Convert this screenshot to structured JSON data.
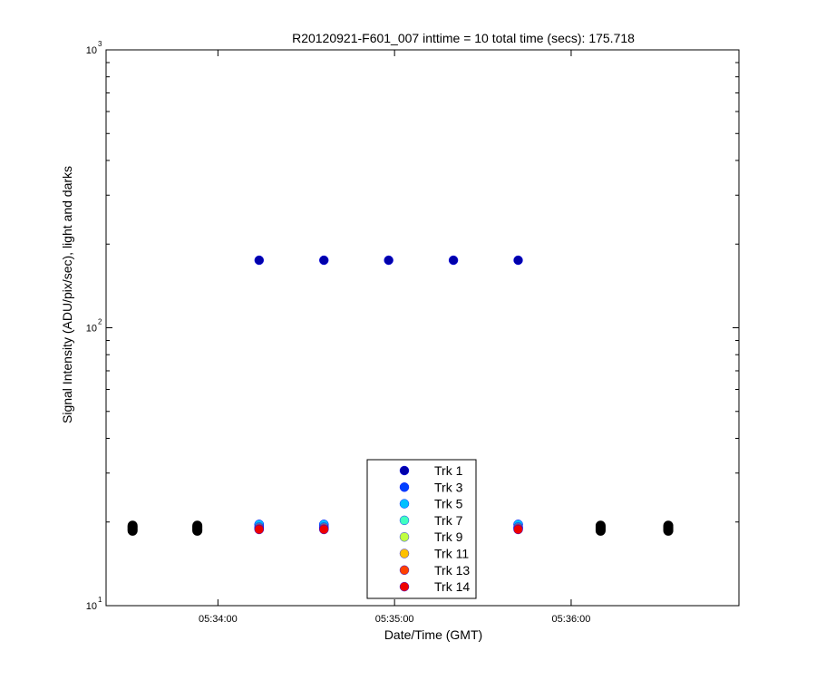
{
  "chart_data": {
    "type": "scatter",
    "title": "R20120921-F601_007 inttime = 10 total time (secs): 175.718",
    "xlabel": "Date/Time (GMT)",
    "ylabel": "Signal Intensity (ADU/pix/sec), light and darks",
    "x_is_time": true,
    "xlim": [
      "05:33:22",
      "05:36:57"
    ],
    "ylim": [
      10,
      1000
    ],
    "y_scale": "log",
    "x_ticks": [
      "05:34:00",
      "05:35:00",
      "05:36:00"
    ],
    "y_ticks": [
      {
        "base": "10",
        "exp": "1",
        "value": 10
      },
      {
        "base": "10",
        "exp": "2",
        "value": 100
      },
      {
        "base": "10",
        "exp": "3",
        "value": 1000
      }
    ],
    "grid": false,
    "legend_position": "bottom-center",
    "series": [
      {
        "name": "Trk 1",
        "color": "#0000aa",
        "x": [
          "05:34:14",
          "05:34:36",
          "05:34:58",
          "05:35:20",
          "05:35:42"
        ],
        "y": [
          175,
          175,
          175,
          175,
          175
        ]
      },
      {
        "name": "Trk 3",
        "color": "#0040ff",
        "x": [
          "05:34:14",
          "05:34:36",
          "05:35:42"
        ],
        "y": [
          19.6,
          19.6,
          19.6
        ]
      },
      {
        "name": "Trk 5",
        "color": "#00c0ff",
        "x": [
          "05:34:14",
          "05:34:36",
          "05:35:42"
        ],
        "y": [
          19.6,
          19.6,
          19.6
        ]
      },
      {
        "name": "Trk 7",
        "color": "#40ffc0",
        "x": [
          "05:34:14",
          "05:34:36",
          "05:35:42"
        ],
        "y": [
          19.2,
          19.2,
          19.2
        ]
      },
      {
        "name": "Trk 9",
        "color": "#c0ff40",
        "x": [
          "05:34:14",
          "05:34:36",
          "05:35:42"
        ],
        "y": [
          19.1,
          19.1,
          19.1
        ]
      },
      {
        "name": "Trk 11",
        "color": "#ffc000",
        "x": [
          "05:34:14",
          "05:34:36",
          "05:35:42"
        ],
        "y": [
          19.0,
          19.0,
          19.0
        ]
      },
      {
        "name": "Trk 13",
        "color": "#ff4000",
        "x": [
          "05:34:14",
          "05:34:36",
          "05:35:42"
        ],
        "y": [
          18.9,
          18.9,
          18.9
        ]
      },
      {
        "name": "Trk 14",
        "color": "#ee0000",
        "x": [
          "05:34:14",
          "05:34:36",
          "05:35:42"
        ],
        "y": [
          18.8,
          18.8,
          18.8
        ]
      }
    ],
    "darks": {
      "color": "#000000",
      "x": [
        "05:33:31",
        "05:33:31",
        "05:33:31",
        "05:33:31",
        "05:33:31",
        "05:33:53",
        "05:33:53",
        "05:33:53",
        "05:33:53",
        "05:33:53",
        "05:36:10",
        "05:36:10",
        "05:36:10",
        "05:36:10",
        "05:36:10",
        "05:36:33",
        "05:36:33",
        "05:36:33",
        "05:36:33",
        "05:36:33"
      ],
      "y": [
        18.6,
        18.8,
        19.0,
        19.2,
        19.4,
        18.6,
        18.8,
        19.0,
        19.2,
        19.4,
        18.6,
        18.8,
        19.0,
        19.2,
        19.4,
        18.6,
        18.8,
        19.0,
        19.2,
        19.4
      ]
    }
  }
}
